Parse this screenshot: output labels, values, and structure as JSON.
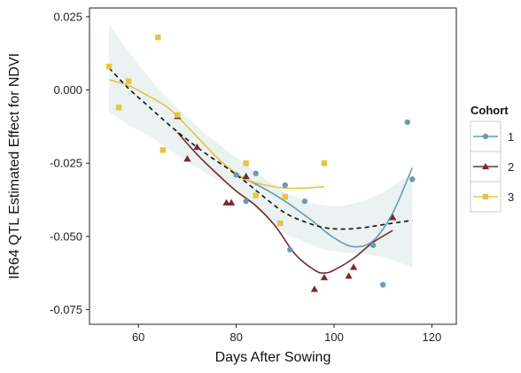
{
  "chart_data": {
    "type": "scatter",
    "title": "",
    "xlabel": "Days After Sowing",
    "ylabel": "IR64 QTL Estimated Effect for NDVI",
    "xlim": [
      50,
      125
    ],
    "ylim": [
      -0.08,
      0.028
    ],
    "x_ticks": [
      60,
      80,
      100,
      120
    ],
    "x_tick_labels": [
      "60",
      "80",
      "100",
      "120"
    ],
    "y_ticks": [
      0.025,
      0.0,
      -0.025,
      -0.05,
      -0.075
    ],
    "y_tick_labels": [
      "0.025",
      "0.000",
      "-0.025",
      "-0.050",
      "-0.075"
    ],
    "grid": false,
    "legend": {
      "title": "Cohort",
      "placement": "right"
    },
    "series": [
      {
        "name": "1",
        "color": "#6b9bb0",
        "marker": "circle",
        "points": [
          {
            "x": 80,
            "y": -0.029
          },
          {
            "x": 82,
            "y": -0.038
          },
          {
            "x": 84,
            "y": -0.0285
          },
          {
            "x": 90,
            "y": -0.0325
          },
          {
            "x": 91,
            "y": -0.0545
          },
          {
            "x": 94,
            "y": -0.038
          },
          {
            "x": 108,
            "y": -0.053
          },
          {
            "x": 110,
            "y": -0.0665
          },
          {
            "x": 115,
            "y": -0.011
          },
          {
            "x": 116,
            "y": -0.0305
          }
        ],
        "smooth": [
          {
            "x": 80,
            "y": -0.029
          },
          {
            "x": 85,
            "y": -0.033
          },
          {
            "x": 90,
            "y": -0.038
          },
          {
            "x": 95,
            "y": -0.044
          },
          {
            "x": 100,
            "y": -0.0505
          },
          {
            "x": 104,
            "y": -0.0535
          },
          {
            "x": 108,
            "y": -0.0515
          },
          {
            "x": 112,
            "y": -0.042
          },
          {
            "x": 116,
            "y": -0.0265
          }
        ]
      },
      {
        "name": "2",
        "color": "#7b2a2a",
        "marker": "triangle",
        "points": [
          {
            "x": 68,
            "y": -0.009
          },
          {
            "x": 70,
            "y": -0.0235
          },
          {
            "x": 72,
            "y": -0.0195
          },
          {
            "x": 78,
            "y": -0.0385
          },
          {
            "x": 79,
            "y": -0.0385
          },
          {
            "x": 82,
            "y": -0.0295
          },
          {
            "x": 96,
            "y": -0.068
          },
          {
            "x": 98,
            "y": -0.064
          },
          {
            "x": 103,
            "y": -0.0635
          },
          {
            "x": 104,
            "y": -0.0605
          },
          {
            "x": 112,
            "y": -0.0435
          }
        ],
        "smooth": [
          {
            "x": 68,
            "y": -0.0145
          },
          {
            "x": 72,
            "y": -0.022
          },
          {
            "x": 76,
            "y": -0.0285
          },
          {
            "x": 80,
            "y": -0.0345
          },
          {
            "x": 84,
            "y": -0.0395
          },
          {
            "x": 88,
            "y": -0.0465
          },
          {
            "x": 92,
            "y": -0.056
          },
          {
            "x": 96,
            "y": -0.0615
          },
          {
            "x": 98,
            "y": -0.0625
          },
          {
            "x": 100,
            "y": -0.0615
          },
          {
            "x": 104,
            "y": -0.0575
          },
          {
            "x": 108,
            "y": -0.052
          },
          {
            "x": 112,
            "y": -0.048
          }
        ]
      },
      {
        "name": "3",
        "color": "#e5c441",
        "marker": "square",
        "points": [
          {
            "x": 54,
            "y": 0.008
          },
          {
            "x": 56,
            "y": -0.006
          },
          {
            "x": 58,
            "y": 0.003
          },
          {
            "x": 64,
            "y": 0.018
          },
          {
            "x": 65,
            "y": -0.0205
          },
          {
            "x": 68,
            "y": -0.0085
          },
          {
            "x": 82,
            "y": -0.025
          },
          {
            "x": 84,
            "y": -0.036
          },
          {
            "x": 89,
            "y": -0.0455
          },
          {
            "x": 90,
            "y": -0.0365
          },
          {
            "x": 98,
            "y": -0.025
          }
        ],
        "smooth": [
          {
            "x": 54,
            "y": 0.0035
          },
          {
            "x": 58,
            "y": 0.0015
          },
          {
            "x": 62,
            "y": -0.002
          },
          {
            "x": 66,
            "y": -0.006
          },
          {
            "x": 70,
            "y": -0.0125
          },
          {
            "x": 74,
            "y": -0.0195
          },
          {
            "x": 78,
            "y": -0.026
          },
          {
            "x": 82,
            "y": -0.0305
          },
          {
            "x": 86,
            "y": -0.0325
          },
          {
            "x": 90,
            "y": -0.0335
          },
          {
            "x": 94,
            "y": -0.0335
          },
          {
            "x": 98,
            "y": -0.033
          }
        ]
      }
    ],
    "overall_smooth": {
      "style": "dashed",
      "color": "#111111",
      "points": [
        {
          "x": 54,
          "y": 0.0075
        },
        {
          "x": 58,
          "y": 0.0005
        },
        {
          "x": 62,
          "y": -0.0055
        },
        {
          "x": 66,
          "y": -0.0115
        },
        {
          "x": 70,
          "y": -0.017
        },
        {
          "x": 74,
          "y": -0.022
        },
        {
          "x": 78,
          "y": -0.0265
        },
        {
          "x": 82,
          "y": -0.0315
        },
        {
          "x": 86,
          "y": -0.037
        },
        {
          "x": 90,
          "y": -0.042
        },
        {
          "x": 94,
          "y": -0.045
        },
        {
          "x": 98,
          "y": -0.047
        },
        {
          "x": 102,
          "y": -0.0475
        },
        {
          "x": 106,
          "y": -0.047
        },
        {
          "x": 110,
          "y": -0.046
        },
        {
          "x": 116,
          "y": -0.0445
        }
      ],
      "band_upper": [
        {
          "x": 54,
          "y": 0.0225
        },
        {
          "x": 58,
          "y": 0.013
        },
        {
          "x": 62,
          "y": 0.0045
        },
        {
          "x": 66,
          "y": -0.003
        },
        {
          "x": 70,
          "y": -0.0095
        },
        {
          "x": 74,
          "y": -0.0155
        },
        {
          "x": 78,
          "y": -0.0205
        },
        {
          "x": 82,
          "y": -0.0255
        },
        {
          "x": 86,
          "y": -0.0305
        },
        {
          "x": 90,
          "y": -0.035
        },
        {
          "x": 94,
          "y": -0.038
        },
        {
          "x": 98,
          "y": -0.0395
        },
        {
          "x": 102,
          "y": -0.0395
        },
        {
          "x": 106,
          "y": -0.038
        },
        {
          "x": 110,
          "y": -0.035
        },
        {
          "x": 116,
          "y": -0.0285
        }
      ],
      "band_lower": [
        {
          "x": 54,
          "y": -0.0075
        },
        {
          "x": 58,
          "y": -0.012
        },
        {
          "x": 62,
          "y": -0.0155
        },
        {
          "x": 66,
          "y": -0.02
        },
        {
          "x": 70,
          "y": -0.0245
        },
        {
          "x": 74,
          "y": -0.0285
        },
        {
          "x": 78,
          "y": -0.0325
        },
        {
          "x": 82,
          "y": -0.0375
        },
        {
          "x": 86,
          "y": -0.0435
        },
        {
          "x": 90,
          "y": -0.049
        },
        {
          "x": 94,
          "y": -0.052
        },
        {
          "x": 98,
          "y": -0.0545
        },
        {
          "x": 102,
          "y": -0.0555
        },
        {
          "x": 106,
          "y": -0.056
        },
        {
          "x": 110,
          "y": -0.057
        },
        {
          "x": 116,
          "y": -0.0605
        }
      ],
      "band_color": "#e8f1f1"
    }
  }
}
